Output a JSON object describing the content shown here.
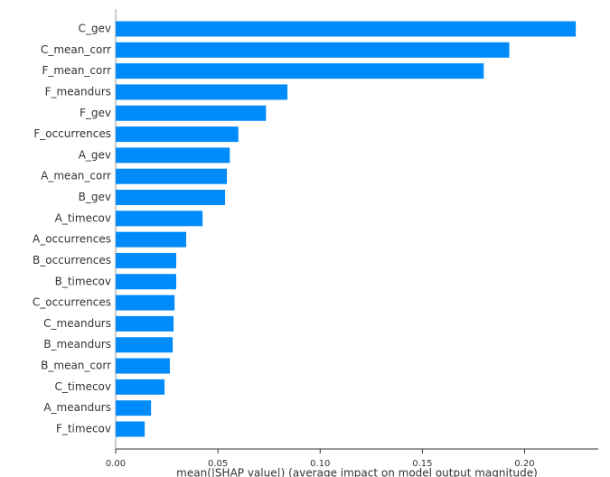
{
  "chart_data": {
    "type": "bar",
    "orientation": "horizontal",
    "xlabel": "mean(|SHAP value|) (average impact on model output magnitude)",
    "categories": [
      "C_gev",
      "C_mean_corr",
      "F_mean_corr",
      "F_meandurs",
      "F_gev",
      "F_occurrences",
      "A_gev",
      "A_mean_corr",
      "B_gev",
      "A_timecov",
      "A_occurrences",
      "B_occurrences",
      "B_timecov",
      "C_occurrences",
      "C_meandurs",
      "B_meandurs",
      "B_mean_corr",
      "C_timecov",
      "A_meandurs",
      "F_timecov"
    ],
    "values": [
      0.225,
      0.1925,
      0.18,
      0.084,
      0.0735,
      0.06,
      0.0558,
      0.0544,
      0.0535,
      0.0425,
      0.0345,
      0.0296,
      0.0296,
      0.0288,
      0.0283,
      0.0279,
      0.0265,
      0.0239,
      0.0173,
      0.0142
    ],
    "color": "#008bfb",
    "xlim": [
      0,
      0.236
    ],
    "xticks": [
      {
        "value": 0,
        "label": "0.00"
      },
      0.05,
      {
        "value": 0.1,
        "label": "0.10"
      },
      0.15,
      {
        "value": 0.2,
        "label": "0.20"
      }
    ]
  }
}
